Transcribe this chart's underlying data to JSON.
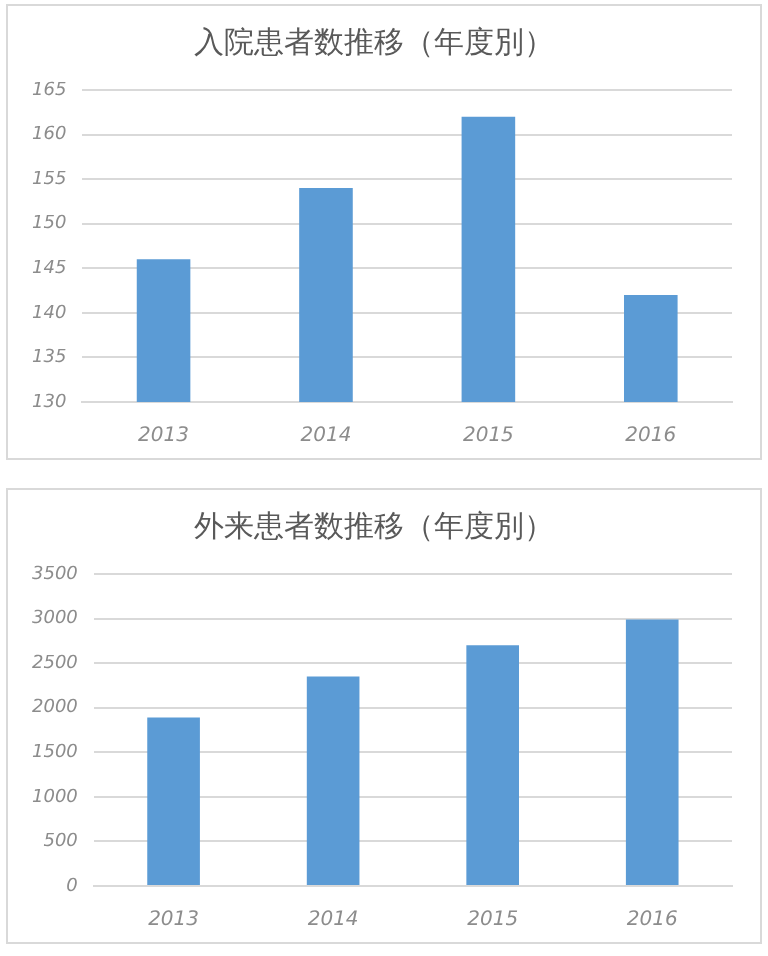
{
  "chart_data": [
    {
      "type": "bar",
      "title": "入院患者数推移（年度別）",
      "categories": [
        "2013",
        "2014",
        "2015",
        "2016"
      ],
      "values": [
        146,
        154,
        162,
        142
      ],
      "color": "#5b9bd5",
      "ylim": [
        130,
        165
      ],
      "yticks": [
        130,
        135,
        140,
        145,
        150,
        155,
        160,
        165
      ],
      "grid": "y",
      "legend": false
    },
    {
      "type": "bar",
      "title": "外来患者数推移（年度別）",
      "categories": [
        "2013",
        "2014",
        "2015",
        "2016"
      ],
      "values": [
        1890,
        2350,
        2700,
        2990
      ],
      "color": "#5b9bd5",
      "ylim": [
        0,
        3500
      ],
      "yticks": [
        0,
        500,
        1000,
        1500,
        2000,
        2500,
        3000,
        3500
      ],
      "grid": "y",
      "legend": false
    }
  ]
}
